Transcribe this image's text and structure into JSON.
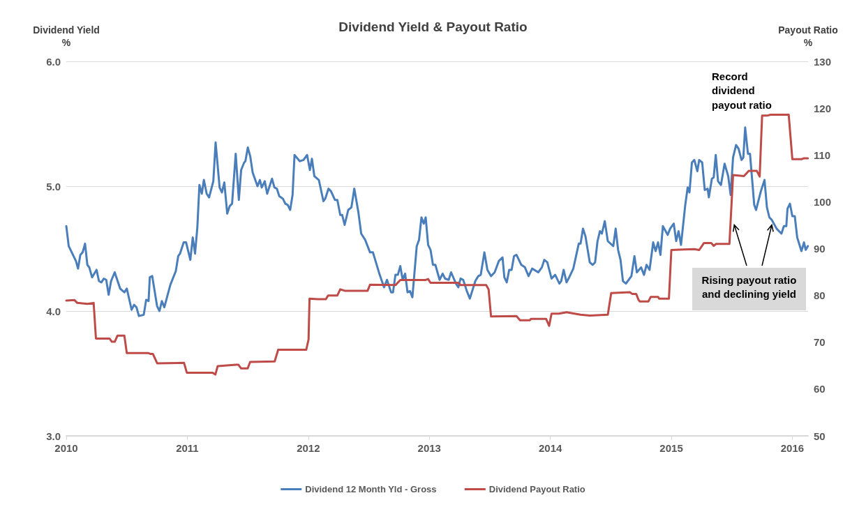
{
  "chart_data": {
    "type": "line",
    "title": "Dividend Yield & Payout Ratio",
    "ylabel": "Dividend Yield\n%",
    "y2label": "Payout Ratio\n%",
    "xlim": [
      2010,
      2016.13
    ],
    "xticks": [
      2010,
      2011,
      2012,
      2013,
      2014,
      2015,
      2016
    ],
    "ylim": [
      3,
      6
    ],
    "yticks": [
      {
        "value": 3,
        "label": "3.0"
      },
      {
        "value": 4,
        "label": "4.0"
      },
      {
        "value": 5,
        "label": "5.0"
      },
      {
        "value": 6,
        "label": "6.0"
      }
    ],
    "y2lim": [
      50,
      130
    ],
    "y2ticks": [
      50,
      60,
      70,
      80,
      90,
      100,
      110,
      120,
      130
    ],
    "grid": "y",
    "legend": "bottom",
    "marker": "none",
    "line_style": "solid",
    "annotations": [
      "Record dividend payout ratio",
      {
        "text": "Rising payout ratio and declining yield",
        "x": 2015.52,
        "y": 4.69
      }
    ],
    "series": [
      {
        "name": "Dividend 12 Month Yld - Gross",
        "color": "#4a7ebb",
        "x": [
          2010.0,
          2010.02,
          2010.08,
          2010.097,
          2010.116,
          2010.135,
          2010.155,
          2010.174,
          2010.19,
          2010.213,
          2010.25,
          2010.27,
          2010.29,
          2010.31,
          2010.33,
          2010.35,
          2010.37,
          2010.4,
          2010.445,
          2010.48,
          2010.5,
          2010.54,
          2010.56,
          2010.58,
          2010.6,
          2010.64,
          2010.66,
          2010.68,
          2010.69,
          2010.71,
          2010.75,
          2010.77,
          2010.79,
          2010.81,
          2010.86,
          2010.905,
          2010.925,
          2010.94,
          2010.97,
          2010.99,
          2011.025,
          2011.045,
          2011.064,
          2011.083,
          2011.1,
          2011.12,
          2011.137,
          2011.16,
          2011.18,
          2011.215,
          2011.234,
          2011.267,
          2011.286,
          2011.306,
          2011.33,
          2011.35,
          2011.37,
          2011.4,
          2011.426,
          2011.445,
          2011.47,
          2011.48,
          2011.5,
          2011.52,
          2011.54,
          2011.58,
          2011.6,
          2011.615,
          2011.64,
          2011.66,
          2011.7,
          2011.72,
          2011.74,
          2011.76,
          2011.79,
          2011.81,
          2011.83,
          2011.85,
          2011.87,
          2011.886,
          2011.93,
          2011.96,
          2011.99,
          2012.013,
          2012.03,
          2012.05,
          2012.087,
          2012.125,
          2012.14,
          2012.167,
          2012.187,
          2012.22,
          2012.24,
          2012.264,
          2012.28,
          2012.3,
          2012.33,
          2012.356,
          2012.38,
          2012.414,
          2012.437,
          2012.47,
          2012.51,
          2012.534,
          2012.59,
          2012.626,
          2012.65,
          2012.684,
          2012.7,
          2012.72,
          2012.74,
          2012.76,
          2012.78,
          2012.8,
          2012.82,
          2012.84,
          2012.86,
          2012.896,
          2012.915,
          2012.935,
          2012.954,
          2012.97,
          2012.99,
          2013.01,
          2013.03,
          2013.05,
          2013.085,
          2013.11,
          2013.13,
          2013.16,
          2013.18,
          2013.22,
          2013.24,
          2013.258,
          2013.28,
          2013.31,
          2013.335,
          2013.38,
          2013.405,
          2013.425,
          2013.455,
          2013.48,
          2013.51,
          2013.54,
          2013.574,
          2013.605,
          2013.62,
          2013.64,
          2013.66,
          2013.68,
          2013.7,
          2013.72,
          2013.76,
          2013.79,
          2013.82,
          2013.85,
          2013.9,
          2013.93,
          2013.95,
          2013.975,
          2014.01,
          2014.04,
          2014.075,
          2014.09,
          2014.11,
          2014.134,
          2014.156,
          2014.19,
          2014.235,
          2014.25,
          2014.27,
          2014.29,
          2014.326,
          2014.35,
          2014.37,
          2014.39,
          2014.41,
          2014.426,
          2014.45,
          2014.475,
          2014.52,
          2014.54,
          2014.56,
          2014.58,
          2014.6,
          2014.625,
          2014.67,
          2014.695,
          2014.715,
          2014.75,
          2014.774,
          2014.795,
          2014.82,
          2014.85,
          2014.87,
          2014.89,
          2014.91,
          2014.93,
          2014.97,
          2014.99,
          2015.02,
          2015.04,
          2015.06,
          2015.08,
          2015.115,
          2015.135,
          2015.15,
          2015.17,
          2015.19,
          2015.215,
          2015.23,
          2015.255,
          2015.276,
          2015.3,
          2015.31,
          2015.335,
          2015.35,
          2015.367,
          2015.386,
          2015.41,
          2015.44,
          2015.47,
          2015.49,
          2015.51,
          2015.535,
          2015.556,
          2015.58,
          2015.595,
          2015.61,
          2015.633,
          2015.65,
          2015.685,
          2015.7,
          2015.74,
          2015.77,
          2015.79,
          2015.81,
          2015.83,
          2015.87,
          2015.89,
          2015.91,
          2015.93,
          2015.95,
          2015.96,
          2015.98,
          2016.0,
          2016.02,
          2016.04,
          2016.075,
          2016.096,
          2016.11,
          2016.128
        ],
        "values": [
          4.68,
          4.52,
          4.4,
          4.34,
          4.45,
          4.47,
          4.54,
          4.37,
          4.35,
          4.27,
          4.33,
          4.24,
          4.23,
          4.26,
          4.25,
          4.13,
          4.24,
          4.31,
          4.18,
          4.15,
          4.18,
          4.01,
          4.05,
          4.03,
          3.96,
          3.97,
          4.09,
          4.08,
          4.27,
          4.28,
          4.04,
          4.0,
          4.08,
          4.03,
          4.21,
          4.32,
          4.44,
          4.46,
          4.55,
          4.55,
          4.41,
          4.59,
          4.46,
          4.67,
          5.01,
          4.94,
          5.05,
          4.94,
          4.91,
          5.04,
          5.35,
          4.99,
          4.95,
          5.03,
          4.78,
          4.84,
          4.86,
          5.26,
          4.89,
          5.13,
          5.19,
          5.2,
          5.31,
          5.24,
          5.11,
          5.0,
          5.05,
          4.99,
          5.04,
          4.94,
          5.06,
          4.99,
          4.98,
          4.92,
          4.9,
          4.86,
          4.85,
          4.81,
          4.93,
          5.25,
          5.2,
          5.21,
          5.25,
          5.13,
          5.22,
          5.08,
          5.05,
          4.88,
          4.9,
          4.98,
          4.96,
          4.89,
          4.89,
          4.77,
          4.77,
          4.69,
          4.81,
          4.83,
          4.98,
          4.79,
          4.62,
          4.57,
          4.47,
          4.47,
          4.29,
          4.19,
          4.25,
          4.15,
          4.15,
          4.29,
          4.29,
          4.36,
          4.25,
          4.3,
          4.15,
          4.16,
          4.11,
          4.52,
          4.57,
          4.75,
          4.7,
          4.75,
          4.53,
          4.49,
          4.37,
          4.37,
          4.25,
          4.3,
          4.26,
          4.25,
          4.31,
          4.22,
          4.19,
          4.26,
          4.25,
          4.16,
          4.1,
          4.24,
          4.28,
          4.29,
          4.47,
          4.33,
          4.28,
          4.31,
          4.4,
          4.43,
          4.27,
          4.23,
          4.33,
          4.33,
          4.44,
          4.45,
          4.37,
          4.35,
          4.28,
          4.34,
          4.31,
          4.35,
          4.41,
          4.39,
          4.26,
          4.29,
          4.22,
          4.24,
          4.33,
          4.23,
          4.27,
          4.34,
          4.54,
          4.54,
          4.66,
          4.6,
          4.39,
          4.37,
          4.39,
          4.56,
          4.64,
          4.62,
          4.72,
          4.56,
          4.52,
          4.66,
          4.49,
          4.41,
          4.24,
          4.22,
          4.28,
          4.44,
          4.31,
          4.35,
          4.29,
          4.37,
          4.33,
          4.55,
          4.48,
          4.55,
          4.45,
          4.68,
          4.61,
          4.66,
          4.7,
          4.56,
          4.64,
          4.53,
          4.85,
          4.99,
          4.95,
          5.19,
          5.21,
          5.12,
          5.21,
          5.19,
          4.97,
          4.98,
          4.91,
          5.06,
          5.07,
          5.25,
          5.04,
          5.01,
          5.18,
          5.08,
          4.93,
          5.23,
          5.33,
          5.3,
          5.21,
          5.23,
          5.47,
          5.26,
          5.26,
          4.85,
          4.81,
          4.96,
          5.05,
          4.83,
          4.75,
          4.73,
          4.66,
          4.64,
          4.62,
          4.68,
          4.68,
          4.82,
          4.86,
          4.76,
          4.76,
          4.59,
          4.48,
          4.55,
          4.49,
          4.52
        ]
      },
      {
        "name": "Dividend Payout Ratio",
        "color": "#be4b48",
        "axis": "y2",
        "x": [
          2010.0,
          2010.068,
          2010.091,
          2010.174,
          2010.226,
          2010.245,
          2010.357,
          2010.377,
          2010.4,
          2010.423,
          2010.48,
          2010.5,
          2010.677,
          2010.697,
          2010.716,
          2010.751,
          2010.973,
          2010.996,
          2011.209,
          2011.232,
          2011.251,
          2011.402,
          2011.422,
          2011.445,
          2011.499,
          2011.519,
          2011.722,
          2011.751,
          2011.983,
          2012.002,
          2012.01,
          2012.08,
          2012.145,
          2012.164,
          2012.24,
          2012.264,
          2012.3,
          2012.49,
          2012.51,
          2012.72,
          2012.76,
          2012.97,
          2012.99,
          2013.01,
          2013.24,
          2013.258,
          2013.47,
          2013.49,
          2013.51,
          2013.72,
          2013.75,
          2013.83,
          2013.84,
          2013.965,
          2013.99,
          2014.01,
          2014.07,
          2014.134,
          2014.25,
          2014.326,
          2014.475,
          2014.503,
          2014.657,
          2014.678,
          2014.71,
          2014.73,
          2014.74,
          2014.81,
          2014.83,
          2014.89,
          2014.9,
          2014.98,
          2015.0,
          2015.1,
          2015.19,
          2015.23,
          2015.27,
          2015.33,
          2015.35,
          2015.37,
          2015.48,
          2015.51,
          2015.6,
          2015.64,
          2015.706,
          2015.73,
          2015.75,
          2015.79,
          2015.82,
          2015.97,
          2016.0,
          2016.075,
          2016.096,
          2016.128
        ],
        "values": [
          78.9,
          79.0,
          78.4,
          78.2,
          78.4,
          70.8,
          70.8,
          70.1,
          70.1,
          71.4,
          71.4,
          67.7,
          67.7,
          67.5,
          67.5,
          65.5,
          65.6,
          63.5,
          63.5,
          63.1,
          64.9,
          65.2,
          65.2,
          64.4,
          64.4,
          65.8,
          65.9,
          68.4,
          68.4,
          70.6,
          79.3,
          79.2,
          79.2,
          80.0,
          80.0,
          81.3,
          81.0,
          81.0,
          82.3,
          82.2,
          83.3,
          83.3,
          83.5,
          82.7,
          82.7,
          82.2,
          82.2,
          81.3,
          75.5,
          75.6,
          74.7,
          74.7,
          75.0,
          75.0,
          73.5,
          76.1,
          76.1,
          76.4,
          75.9,
          75.7,
          75.9,
          80.5,
          80.7,
          80.3,
          80.3,
          79.0,
          78.7,
          78.7,
          79.7,
          79.7,
          79.3,
          79.3,
          89.7,
          89.8,
          89.9,
          89.7,
          91.2,
          91.2,
          90.6,
          91.0,
          91.0,
          105.7,
          105.5,
          106.6,
          106.6,
          105.4,
          118.4,
          118.4,
          118.6,
          118.6,
          109.1,
          109.1,
          109.3,
          109.3
        ]
      }
    ]
  }
}
